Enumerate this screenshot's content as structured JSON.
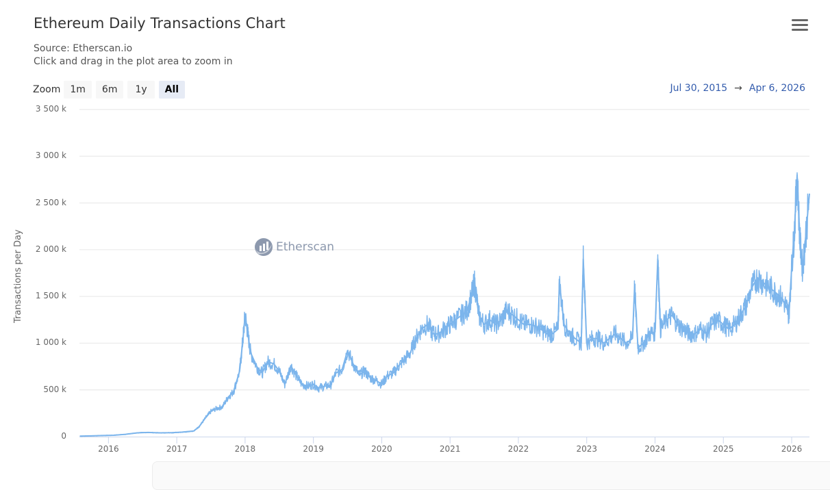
{
  "header": {
    "title": "Ethereum Daily Transactions Chart",
    "source": "Source: Etherscan.io",
    "hint": "Click and drag in the plot area to zoom in",
    "menu_icon": "hamburger-menu-icon"
  },
  "zoom": {
    "label": "Zoom",
    "buttons": [
      {
        "label": "1m",
        "active": false
      },
      {
        "label": "6m",
        "active": false
      },
      {
        "label": "1y",
        "active": false
      },
      {
        "label": "All",
        "active": true
      }
    ]
  },
  "range": {
    "from": "Jul 30, 2015",
    "arrow": "→",
    "to": "Apr 6, 2026"
  },
  "watermark": {
    "text": "Etherscan",
    "icon": "etherscan-logo-icon"
  },
  "colors": {
    "series": "#7cb5ec",
    "gridline": "#e6e6e6",
    "axis": "#ccd6eb",
    "range_text": "#335cad",
    "zoom_active_bg": "#e6ebf5"
  },
  "chart_data": {
    "type": "line",
    "title": "Ethereum Daily Transactions Chart",
    "subtitle": "Source: Etherscan.io",
    "xlabel": "",
    "ylabel": "Transactions per Day",
    "ylim": [
      0,
      3500000
    ],
    "y_ticks": [
      {
        "value": 0,
        "label": "0"
      },
      {
        "value": 500000,
        "label": "500 k"
      },
      {
        "value": 1000000,
        "label": "1 000 k"
      },
      {
        "value": 1500000,
        "label": "1 500 k"
      },
      {
        "value": 2000000,
        "label": "2 000 k"
      },
      {
        "value": 2500000,
        "label": "2 500 k"
      },
      {
        "value": 3000000,
        "label": "3 000 k"
      },
      {
        "value": 3500000,
        "label": "3 500 k"
      }
    ],
    "x_ticks": [
      "2016",
      "2017",
      "2018",
      "2019",
      "2020",
      "2021",
      "2022",
      "2023",
      "2024",
      "2025",
      "2026"
    ],
    "xlim": [
      "2015-07-30",
      "2026-04-06"
    ],
    "grid": true,
    "legend": false,
    "series": [
      {
        "name": "Transactions per Day",
        "x": [
          2015.58,
          2015.75,
          2015.92,
          2016.08,
          2016.25,
          2016.42,
          2016.58,
          2016.75,
          2016.92,
          2017.08,
          2017.25,
          2017.33,
          2017.42,
          2017.5,
          2017.58,
          2017.67,
          2017.75,
          2017.83,
          2017.92,
          2017.97,
          2018.0,
          2018.04,
          2018.08,
          2018.17,
          2018.25,
          2018.33,
          2018.42,
          2018.5,
          2018.58,
          2018.67,
          2018.75,
          2018.83,
          2018.92,
          2019.0,
          2019.08,
          2019.17,
          2019.25,
          2019.33,
          2019.42,
          2019.5,
          2019.58,
          2019.67,
          2019.75,
          2019.83,
          2019.92,
          2020.0,
          2020.08,
          2020.17,
          2020.25,
          2020.33,
          2020.42,
          2020.5,
          2020.58,
          2020.67,
          2020.75,
          2020.83,
          2020.92,
          2021.0,
          2021.08,
          2021.17,
          2021.25,
          2021.33,
          2021.36,
          2021.42,
          2021.5,
          2021.58,
          2021.67,
          2021.75,
          2021.83,
          2021.92,
          2022.0,
          2022.08,
          2022.17,
          2022.25,
          2022.33,
          2022.42,
          2022.5,
          2022.58,
          2022.6,
          2022.67,
          2022.75,
          2022.83,
          2022.92,
          2022.95,
          2023.0,
          2023.08,
          2023.17,
          2023.25,
          2023.33,
          2023.42,
          2023.5,
          2023.58,
          2023.67,
          2023.7,
          2023.75,
          2023.83,
          2023.92,
          2024.0,
          2024.04,
          2024.08,
          2024.17,
          2024.25,
          2024.33,
          2024.42,
          2024.5,
          2024.58,
          2024.67,
          2024.75,
          2024.83,
          2024.92,
          2025.0,
          2025.08,
          2025.17,
          2025.25,
          2025.33,
          2025.42,
          2025.5,
          2025.58,
          2025.67,
          2025.75,
          2025.83,
          2025.92,
          2025.96,
          2026.0,
          2026.04,
          2026.08,
          2026.12,
          2026.16,
          2026.2,
          2026.26
        ],
        "values": [
          5000,
          8000,
          12000,
          15000,
          25000,
          40000,
          45000,
          40000,
          42000,
          48000,
          60000,
          110000,
          200000,
          270000,
          300000,
          320000,
          420000,
          480000,
          700000,
          1050000,
          1300000,
          1100000,
          900000,
          750000,
          680000,
          800000,
          780000,
          700000,
          560000,
          760000,
          650000,
          560000,
          540000,
          560000,
          520000,
          540000,
          550000,
          680000,
          720000,
          920000,
          780000,
          660000,
          700000,
          630000,
          600000,
          560000,
          650000,
          680000,
          760000,
          820000,
          900000,
          1050000,
          1150000,
          1200000,
          1100000,
          1100000,
          1150000,
          1200000,
          1250000,
          1300000,
          1350000,
          1550000,
          1650000,
          1300000,
          1200000,
          1250000,
          1200000,
          1250000,
          1350000,
          1300000,
          1250000,
          1200000,
          1200000,
          1180000,
          1150000,
          1100000,
          1100000,
          1150000,
          1650000,
          1200000,
          1100000,
          1050000,
          1000000,
          1900000,
          1000000,
          1050000,
          1050000,
          1000000,
          1050000,
          1100000,
          1050000,
          1000000,
          1050000,
          1600000,
          950000,
          1000000,
          1100000,
          1120000,
          1900000,
          1150000,
          1250000,
          1300000,
          1200000,
          1150000,
          1100000,
          1100000,
          1150000,
          1100000,
          1200000,
          1250000,
          1200000,
          1150000,
          1200000,
          1300000,
          1400000,
          1600000,
          1700000,
          1650000,
          1600000,
          1550000,
          1500000,
          1400000,
          1300000,
          1800000,
          2200000,
          2800000,
          2100000,
          1800000,
          2100000,
          2600000
        ]
      }
    ]
  }
}
